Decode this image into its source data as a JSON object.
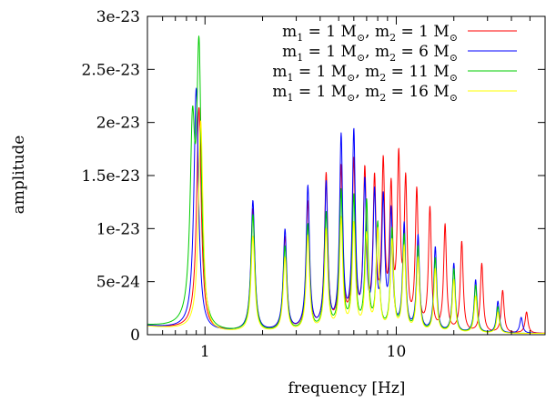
{
  "chart_data": {
    "type": "line",
    "title": "",
    "xlabel": "frequency [Hz]",
    "ylabel": "amplitude",
    "xscale": "log",
    "xlim": [
      0.5,
      60
    ],
    "ylim": [
      0,
      3e-23
    ],
    "grid": false,
    "legend_position": "top-right",
    "x_ticks": [
      {
        "value": 1,
        "label": "1"
      },
      {
        "value": 10,
        "label": "10"
      }
    ],
    "y_ticks": [
      {
        "value": 0,
        "label": "0"
      },
      {
        "value": 5e-24,
        "label": "5e-24"
      },
      {
        "value": 1e-23,
        "label": "1e-23"
      },
      {
        "value": 1.5e-23,
        "label": "1.5e-23"
      },
      {
        "value": 2e-23,
        "label": "2e-23"
      },
      {
        "value": 2.5e-23,
        "label": "2.5e-23"
      },
      {
        "value": 3e-23,
        "label": "3e-23"
      }
    ],
    "series": [
      {
        "color": "#ff0000",
        "legend": {
          "m1": "m",
          "s1": "1",
          "eq1": " = 1 M",
          "m2": ", m",
          "s2": "2",
          "eq2": " =  1 M"
        },
        "peaks": [
          [
            0.93,
            2.1e-23
          ],
          [
            1.78,
            1.15e-23
          ],
          [
            2.62,
            8.8e-24
          ],
          [
            3.45,
            1.2e-23
          ],
          [
            4.3,
            1.45e-23
          ],
          [
            5.15,
            1.5e-23
          ],
          [
            6.0,
            1.55e-23
          ],
          [
            6.85,
            1.45e-23
          ],
          [
            7.7,
            1.35e-23
          ],
          [
            8.55,
            1.5e-23
          ],
          [
            9.4,
            1.25e-23
          ],
          [
            10.3,
            1.55e-23
          ],
          [
            11.2,
            1.35e-23
          ],
          [
            12.8,
            1.3e-23
          ],
          [
            15,
            1.15e-23
          ],
          [
            18,
            1e-23
          ],
          [
            22,
            8.5e-24
          ],
          [
            28,
            6.5e-24
          ],
          [
            36,
            4e-24
          ],
          [
            48,
            2e-24
          ]
        ]
      },
      {
        "color": "#0000ff",
        "legend": {
          "m1": "m",
          "s1": "1",
          "eq1": " = 1 M",
          "m2": ", m",
          "s2": "2",
          "eq2": " =  6 M"
        },
        "peaks": [
          [
            0.9,
            2.28e-23
          ],
          [
            1.78,
            1.23e-23
          ],
          [
            2.62,
            9.5e-24
          ],
          [
            3.45,
            1.35e-23
          ],
          [
            4.3,
            1.37e-23
          ],
          [
            5.15,
            1.8e-23
          ],
          [
            6.0,
            1.83e-23
          ],
          [
            6.85,
            1.35e-23
          ],
          [
            7.7,
            1.25e-23
          ],
          [
            8.55,
            1.2e-23
          ],
          [
            9.4,
            1.1e-23
          ],
          [
            11,
            1e-23
          ],
          [
            13,
            9e-24
          ],
          [
            16,
            8e-24
          ],
          [
            20,
            6.5e-24
          ],
          [
            26,
            5e-24
          ],
          [
            34,
            3e-24
          ],
          [
            45,
            1.5e-24
          ]
        ]
      },
      {
        "color": "#00cc00",
        "legend": {
          "m1": "m",
          "s1": "1",
          "eq1": " = 1 M",
          "m2": ", m",
          "s2": "2",
          "eq2": " = 11 M"
        },
        "peaks": [
          [
            0.86,
            1.7e-23
          ],
          [
            0.93,
            2.52e-23
          ],
          [
            1.78,
            1.1e-23
          ],
          [
            2.62,
            8e-24
          ],
          [
            3.45,
            1e-23
          ],
          [
            4.3,
            1.1e-23
          ],
          [
            5.15,
            1.3e-23
          ],
          [
            6.0,
            1.25e-23
          ],
          [
            7,
            1.2e-23
          ],
          [
            8,
            1e-23
          ],
          [
            9.5,
            9.5e-24
          ],
          [
            11,
            9e-24
          ],
          [
            13,
            8e-24
          ],
          [
            16,
            7e-24
          ],
          [
            20,
            6e-24
          ],
          [
            26,
            4.5e-24
          ],
          [
            34,
            2.5e-24
          ]
        ]
      },
      {
        "color": "#ffff00",
        "legend": {
          "m1": "m",
          "s1": "1",
          "eq1": " = 1 M",
          "m2": ", m",
          "s2": "2",
          "eq2": " = 16 M"
        },
        "peaks": [
          [
            0.95,
            1.98e-23
          ],
          [
            1.78,
            9e-24
          ],
          [
            2.62,
            7e-24
          ],
          [
            3.45,
            9e-24
          ],
          [
            4.3,
            9.5e-24
          ],
          [
            5.15,
            1.05e-23
          ],
          [
            6.0,
            1e-23
          ],
          [
            7,
            9e-24
          ],
          [
            8,
            9.5e-24
          ],
          [
            9.5,
            8.5e-24
          ],
          [
            11,
            8e-24
          ],
          [
            13,
            7e-24
          ],
          [
            16,
            6e-24
          ],
          [
            20,
            5e-24
          ],
          [
            26,
            3.5e-24
          ],
          [
            34,
            2e-24
          ]
        ]
      }
    ]
  }
}
